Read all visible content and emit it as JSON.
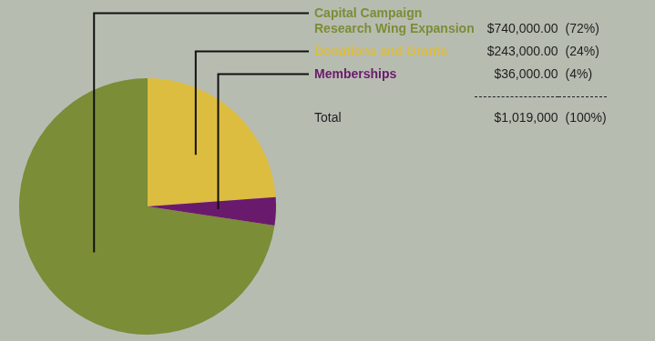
{
  "chart_data": {
    "type": "pie",
    "categories": [
      "Capital Campaign\nResearch Wing Expansion",
      "Donations and Grants",
      "Memberships"
    ],
    "values": [
      740000,
      243000,
      36000
    ],
    "value_labels": [
      "$740,000.00",
      "$243,000.00",
      "$36,000.00"
    ],
    "percent_labels": [
      "(72%)",
      "(24%)",
      "(4%)"
    ],
    "colors": [
      "#7b8d36",
      "#dcbd40",
      "#6a1a6c"
    ],
    "total": {
      "label": "Total",
      "value_label": "$1,019,000",
      "percent_label": "(100%)"
    },
    "legend": false,
    "data_labels": false
  }
}
